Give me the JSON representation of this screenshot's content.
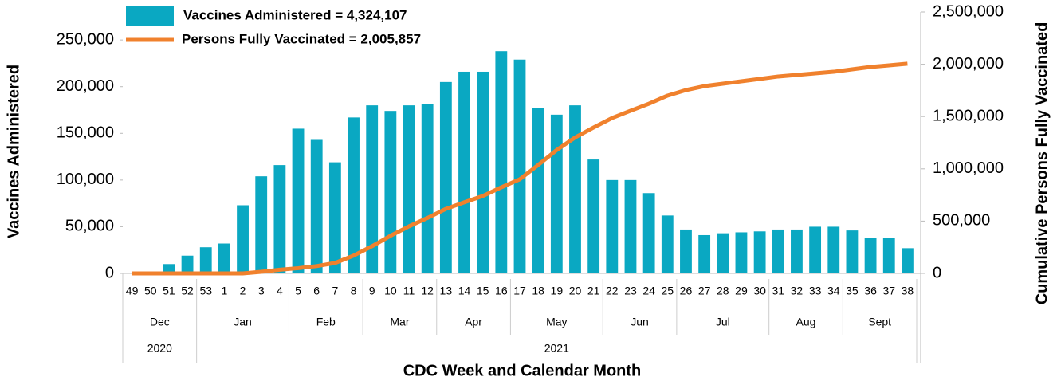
{
  "chart_data": {
    "type": "bar_line",
    "x_title": "CDC Week and Calendar Month",
    "y_title": "Vaccines Administered",
    "y2_title": "Cumulative Persons Fully Vaccinated",
    "categories": [
      "49",
      "50",
      "51",
      "52",
      "53",
      "1",
      "2",
      "3",
      "4",
      "5",
      "6",
      "7",
      "8",
      "9",
      "10",
      "11",
      "12",
      "13",
      "14",
      "15",
      "16",
      "17",
      "18",
      "19",
      "20",
      "21",
      "22",
      "23",
      "24",
      "25",
      "26",
      "27",
      "28",
      "29",
      "30",
      "31",
      "32",
      "33",
      "34",
      "35",
      "36",
      "37",
      "38"
    ],
    "months": [
      {
        "label": "Dec",
        "count": 4
      },
      {
        "label": "Jan",
        "count": 5
      },
      {
        "label": "Feb",
        "count": 4
      },
      {
        "label": "Mar",
        "count": 4
      },
      {
        "label": "Apr",
        "count": 4
      },
      {
        "label": "May",
        "count": 5
      },
      {
        "label": "Jun",
        "count": 4
      },
      {
        "label": "Jul",
        "count": 5
      },
      {
        "label": "Aug",
        "count": 4
      },
      {
        "label": "Sept",
        "count": 4
      }
    ],
    "years": [
      {
        "label": "2020",
        "count": 4
      },
      {
        "label": "2021",
        "count": 39
      }
    ],
    "series": [
      {
        "name": "Vaccines Administered = 4,324,107",
        "color": "#0aa8c2",
        "kind": "bar",
        "axis": "y",
        "values": [
          0,
          0,
          10000,
          19000,
          28000,
          32000,
          73000,
          104000,
          116000,
          155000,
          143000,
          119000,
          167000,
          180000,
          174000,
          180000,
          181000,
          205000,
          216000,
          216000,
          238000,
          229000,
          177000,
          170000,
          180000,
          122000,
          100000,
          100000,
          86000,
          62000,
          47000,
          41000,
          43000,
          44000,
          45000,
          47000,
          47000,
          50000,
          50000,
          46000,
          38000,
          38000,
          27000
        ]
      },
      {
        "name": "Persons Fully Vaccinated = 2,005,857",
        "color": "#f0812d",
        "kind": "line",
        "axis": "y2",
        "values": [
          0,
          0,
          0,
          0,
          0,
          0,
          0,
          15000,
          35000,
          50000,
          70000,
          100000,
          170000,
          260000,
          360000,
          450000,
          530000,
          617000,
          680000,
          740000,
          823000,
          900000,
          1037000,
          1180000,
          1300000,
          1395000,
          1486000,
          1555000,
          1623000,
          1700000,
          1753000,
          1791000,
          1814000,
          1837000,
          1860000,
          1883000,
          1898000,
          1913000,
          1928000,
          1951000,
          1974000,
          1989000,
          2005857
        ]
      }
    ],
    "ylim": [
      0,
      280000
    ],
    "yticks": [
      0,
      {
        "value": 50000,
        "label": "50,000"
      },
      {
        "value": 100000,
        "label": "100,000"
      },
      {
        "value": 150000,
        "label": "150,000"
      },
      {
        "value": 200000,
        "label": "200,000"
      },
      {
        "value": 250000,
        "label": "250,000"
      }
    ],
    "y2lim": [
      0,
      2500000
    ],
    "y2ticks": [
      0,
      {
        "value": 500000,
        "label": "500,000"
      },
      {
        "value": 1000000,
        "label": "1,000,000"
      },
      {
        "value": 1500000,
        "label": "1,500,000"
      },
      {
        "value": 2000000,
        "label": "2,000,000"
      },
      {
        "value": 2500000,
        "label": "2,500,000"
      }
    ]
  }
}
